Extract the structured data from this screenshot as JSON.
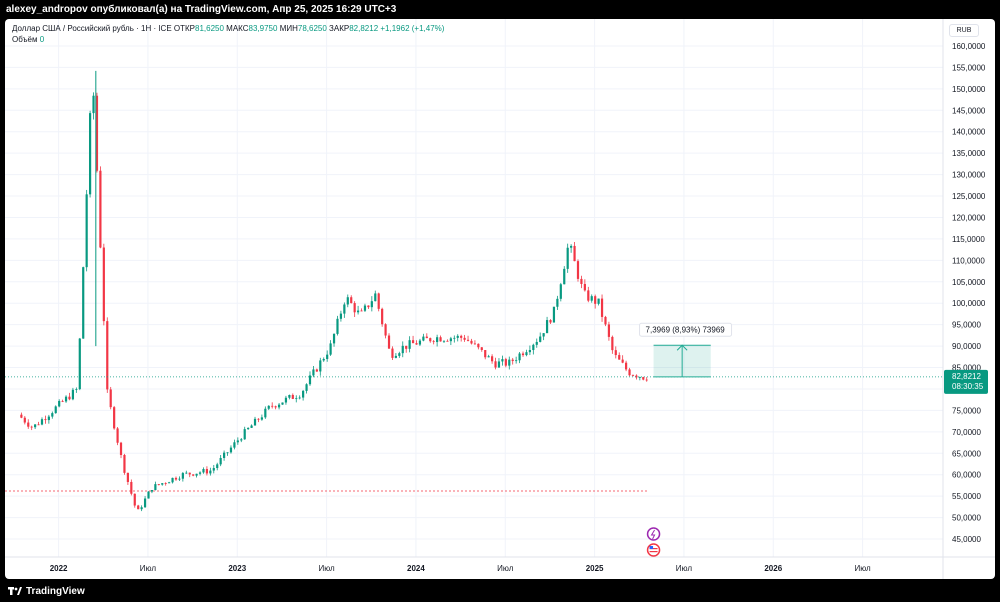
{
  "header": {
    "publisher_line": "alexey_andropov опубликовал(а) на TradingView.com, Апр 25, 2025 16:29 UTC+3"
  },
  "legend": {
    "symbol": "Доллар США / Российский рубль · 1Н · ICE",
    "open_label": "ОТКР",
    "open_value": "81,6250",
    "high_label": "МАКС",
    "high_value": "83,9750",
    "low_label": "МИН",
    "low_value": "78,6250",
    "close_label": "ЗАКР",
    "close_value": "82,8212",
    "change": "+1,1962 (+1,47%)",
    "volume_label": "Объём",
    "volume_value": "0"
  },
  "footer": {
    "brand": "TradingView"
  },
  "colors": {
    "up": "#089981",
    "down": "#f23645",
    "grid": "#f0f3fa",
    "price_line": "#089981",
    "support_line": "#f23645",
    "measure": "#22ab94"
  },
  "chart_data": {
    "type": "candlestick",
    "currency": "RUB",
    "ylim": [
      40,
      160
    ],
    "y_ticks": [
      "160,0000",
      "155,0000",
      "150,0000",
      "145,0000",
      "140,0000",
      "135,0000",
      "130,0000",
      "125,0000",
      "120,0000",
      "115,0000",
      "110,0000",
      "105,0000",
      "100,0000",
      "95,0000",
      "90,0000",
      "85,0000",
      "80,0000",
      "75,0000",
      "70,0000",
      "65,0000",
      "60,0000",
      "55,0000",
      "50,0000",
      "45,0000"
    ],
    "x_ticks": [
      "2022",
      "Июл",
      "2023",
      "Июл",
      "2024",
      "Июл",
      "2025",
      "Июл",
      "2026",
      "Июл"
    ],
    "last_price": "82,8212",
    "countdown": "08:30:35",
    "support_level": 56.2,
    "measure": {
      "label": "7,3969 (8,93%) 73969",
      "from": 82.82,
      "to": 90.2
    },
    "key_points": [
      {
        "date": "2021-10",
        "value": 74
      },
      {
        "date": "2021-11",
        "value": 71
      },
      {
        "date": "2022-01",
        "value": 77
      },
      {
        "date": "2022-02",
        "value": 80
      },
      {
        "date": "2022-03",
        "value": 154.2
      },
      {
        "date": "2022-04",
        "value": 79
      },
      {
        "date": "2022-05",
        "value": 63
      },
      {
        "date": "2022-06",
        "value": 51
      },
      {
        "date": "2022-07",
        "value": 57
      },
      {
        "date": "2022-09",
        "value": 60
      },
      {
        "date": "2022-11",
        "value": 61
      },
      {
        "date": "2023-01",
        "value": 69
      },
      {
        "date": "2023-03",
        "value": 76
      },
      {
        "date": "2023-05",
        "value": 79
      },
      {
        "date": "2023-07",
        "value": 90
      },
      {
        "date": "2023-08",
        "value": 101.5
      },
      {
        "date": "2023-09",
        "value": 97
      },
      {
        "date": "2023-10",
        "value": 102
      },
      {
        "date": "2023-11",
        "value": 88
      },
      {
        "date": "2023-12",
        "value": 90
      },
      {
        "date": "2024-02",
        "value": 92
      },
      {
        "date": "2024-04",
        "value": 92
      },
      {
        "date": "2024-06",
        "value": 86
      },
      {
        "date": "2024-07",
        "value": 86
      },
      {
        "date": "2024-09",
        "value": 92
      },
      {
        "date": "2024-10",
        "value": 98
      },
      {
        "date": "2024-11",
        "value": 114
      },
      {
        "date": "2024-12",
        "value": 102
      },
      {
        "date": "2025-01",
        "value": 100
      },
      {
        "date": "2025-02",
        "value": 88
      },
      {
        "date": "2025-03",
        "value": 84
      },
      {
        "date": "2025-04",
        "value": 82.82
      }
    ]
  }
}
